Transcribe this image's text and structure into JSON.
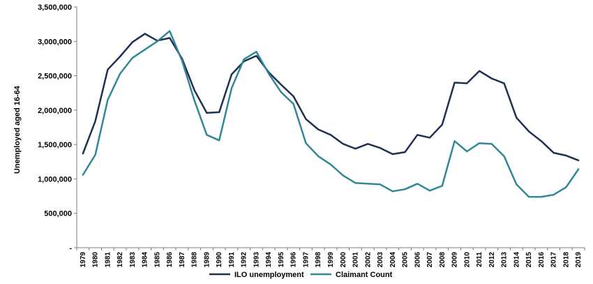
{
  "chart_data": {
    "type": "line",
    "title": "",
    "xlabel": "",
    "ylabel": "Unemployed aged 16-64",
    "ylim": [
      0,
      3500000
    ],
    "yticks": [
      0,
      500000,
      1000000,
      1500000,
      2000000,
      2500000,
      3000000,
      3500000
    ],
    "ytick_labels": [
      "-",
      "500,000",
      "1,000,000",
      "1,500,000",
      "2,000,000",
      "2,500,000",
      "3,000,000",
      "3,500,000"
    ],
    "grid": false,
    "legend_position": "bottom",
    "x": [
      "1979",
      "1980",
      "1981",
      "1982",
      "1983",
      "1984",
      "1985",
      "1986",
      "1987",
      "1988",
      "1989",
      "1990",
      "1991",
      "1992",
      "1993",
      "1994",
      "1995",
      "1996",
      "1997",
      "1998",
      "1999",
      "2000",
      "2001",
      "2002",
      "2003",
      "2004",
      "2005",
      "2006",
      "2007",
      "2008",
      "2009",
      "2010",
      "2011",
      "2012",
      "2013",
      "2014",
      "2015",
      "2016",
      "2017",
      "2018",
      "2019"
    ],
    "series": [
      {
        "name": "ILO unemployment",
        "color": "#1f3151",
        "values": [
          1370000,
          1840000,
          2590000,
          2780000,
          2990000,
          3110000,
          3010000,
          3050000,
          2750000,
          2290000,
          1960000,
          1970000,
          2520000,
          2710000,
          2790000,
          2550000,
          2370000,
          2200000,
          1870000,
          1720000,
          1640000,
          1510000,
          1440000,
          1510000,
          1450000,
          1360000,
          1390000,
          1640000,
          1600000,
          1790000,
          2400000,
          2390000,
          2570000,
          2460000,
          2390000,
          1890000,
          1690000,
          1550000,
          1380000,
          1340000,
          1270000
        ]
      },
      {
        "name": "Claimant Count",
        "color": "#318795",
        "values": [
          1060000,
          1350000,
          2150000,
          2530000,
          2760000,
          2880000,
          3000000,
          3150000,
          2720000,
          2140000,
          1640000,
          1560000,
          2320000,
          2740000,
          2850000,
          2530000,
          2260000,
          2090000,
          1520000,
          1330000,
          1210000,
          1050000,
          940000,
          930000,
          920000,
          820000,
          850000,
          930000,
          830000,
          900000,
          1550000,
          1400000,
          1520000,
          1510000,
          1330000,
          920000,
          740000,
          740000,
          770000,
          880000,
          1140000
        ]
      }
    ]
  }
}
